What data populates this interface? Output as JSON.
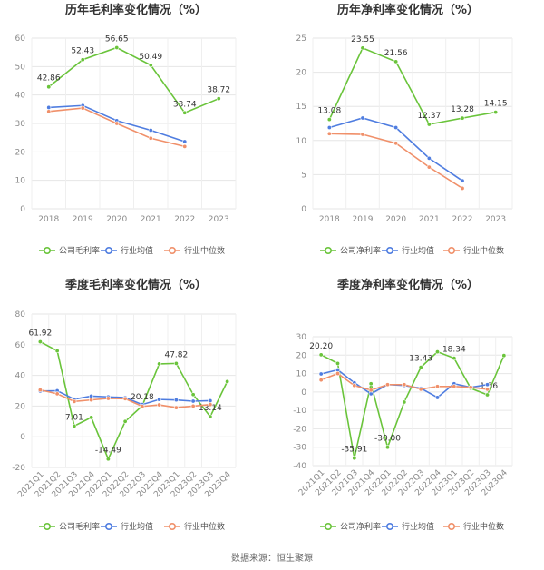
{
  "source": "数据来源：恒生聚源",
  "chart_data": [
    {
      "type": "line",
      "title": "历年毛利率变化情况（%）",
      "categories": [
        "2018",
        "2019",
        "2020",
        "2021",
        "2022",
        "2023"
      ],
      "ylim": [
        0,
        60
      ],
      "yticks": [
        0,
        10,
        20,
        30,
        40,
        50,
        60
      ],
      "grid": true,
      "legend_placement": "bottom",
      "series": [
        {
          "name": "公司毛利率",
          "color": "#6ac43b",
          "values": [
            42.86,
            52.43,
            56.65,
            50.49,
            33.74,
            38.72
          ],
          "labels": [
            "42.86",
            "52.43",
            "56.65",
            "50.49",
            "33.74",
            "38.72"
          ]
        },
        {
          "name": "行业均值",
          "color": "#4f7de0",
          "values": [
            35.6,
            36.3,
            31.0,
            27.6,
            23.6,
            null
          ]
        },
        {
          "name": "行业中位数",
          "color": "#f0906a",
          "values": [
            34.2,
            35.4,
            30.0,
            24.8,
            21.9,
            null
          ]
        }
      ]
    },
    {
      "type": "line",
      "title": "历年净利率变化情况（%）",
      "categories": [
        "2018",
        "2019",
        "2020",
        "2021",
        "2022",
        "2023"
      ],
      "ylim": [
        0,
        25
      ],
      "yticks": [
        0,
        5,
        10,
        15,
        20,
        25
      ],
      "grid": true,
      "legend_placement": "bottom",
      "series": [
        {
          "name": "公司净利率",
          "color": "#6ac43b",
          "values": [
            13.08,
            23.55,
            21.56,
            12.37,
            13.28,
            14.15
          ],
          "labels": [
            "13.08",
            "23.55",
            "21.56",
            "12.37",
            "13.28",
            "14.15"
          ]
        },
        {
          "name": "行业均值",
          "color": "#4f7de0",
          "values": [
            11.9,
            13.3,
            11.9,
            7.4,
            4.1,
            null
          ]
        },
        {
          "name": "行业中位数",
          "color": "#f0906a",
          "values": [
            11.0,
            10.9,
            9.6,
            6.1,
            3.0,
            null
          ]
        }
      ]
    },
    {
      "type": "line",
      "title": "季度毛利率变化情况（%）",
      "categories": [
        "2021Q1",
        "2021Q2",
        "2021Q3",
        "2021Q4",
        "2022Q1",
        "2022Q2",
        "2022Q3",
        "2022Q4",
        "2023Q1",
        "2023Q2",
        "2023Q3",
        "2023Q4"
      ],
      "ylim": [
        -20,
        80
      ],
      "yticks": [
        -20,
        0,
        20,
        40,
        60,
        80
      ],
      "grid": true,
      "legend_placement": "bottom",
      "series": [
        {
          "name": "公司毛利率",
          "color": "#6ac43b",
          "values": [
            61.92,
            56.0,
            7.01,
            12.6,
            -14.49,
            10.0,
            20.18,
            47.5,
            47.82,
            27.5,
            13.14,
            36.0
          ],
          "labels": [
            "61.92",
            "",
            "7.01",
            "",
            "-14.49",
            "",
            "20.18",
            "",
            "47.82",
            "",
            "13.14",
            ""
          ]
        },
        {
          "name": "行业均值",
          "color": "#4f7de0",
          "values": [
            29.8,
            30.0,
            24.5,
            26.5,
            26.0,
            25.5,
            21.0,
            24.3,
            24.0,
            23.2,
            23.5,
            null
          ]
        },
        {
          "name": "行业中位数",
          "color": "#f0906a",
          "values": [
            30.5,
            28.0,
            23.0,
            24.0,
            25.0,
            24.8,
            19.8,
            20.8,
            19.0,
            20.0,
            21.0,
            null
          ]
        }
      ]
    },
    {
      "type": "line",
      "title": "季度净利率变化情况（%）",
      "categories": [
        "2021Q1",
        "2021Q2",
        "2021Q3",
        "2021Q4",
        "2022Q1",
        "2022Q2",
        "2022Q3",
        "2022Q4",
        "2023Q1",
        "2023Q2",
        "2023Q3",
        "2023Q4"
      ],
      "ylim": [
        -40,
        30
      ],
      "yticks": [
        -40,
        -30,
        -20,
        -10,
        0,
        10,
        20,
        30
      ],
      "grid": true,
      "legend_placement": "bottom",
      "series": [
        {
          "name": "公司净利率",
          "color": "#6ac43b",
          "values": [
            20.2,
            15.5,
            -35.91,
            4.5,
            -30.0,
            -5.5,
            13.43,
            21.8,
            18.34,
            2.0,
            -1.56,
            19.8
          ],
          "labels": [
            "20.20",
            "",
            "-35.91",
            "",
            "-30.00",
            "",
            "13.43",
            "",
            "18.34",
            "",
            "-1.56",
            ""
          ]
        },
        {
          "name": "行业均值",
          "color": "#4f7de0",
          "values": [
            9.8,
            12.0,
            5.0,
            -1.0,
            4.0,
            3.5,
            2.0,
            -3.0,
            4.5,
            2.5,
            4.0,
            null
          ]
        },
        {
          "name": "行业中位数",
          "color": "#f0906a",
          "values": [
            6.5,
            10.0,
            3.5,
            1.0,
            4.0,
            4.0,
            1.5,
            3.0,
            3.0,
            2.5,
            1.5,
            null
          ]
        }
      ]
    }
  ]
}
